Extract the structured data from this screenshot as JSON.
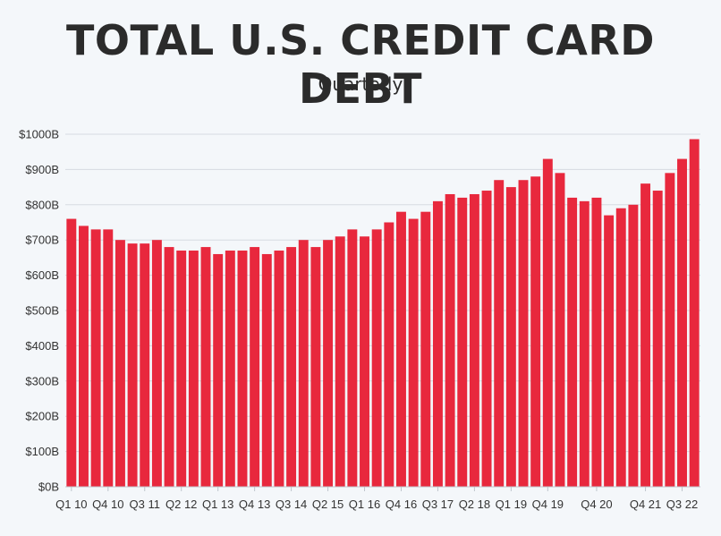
{
  "chart_data": {
    "type": "bar",
    "title": "TOTAL U.S. CREDIT CARD DEBT",
    "subtitle": "Quarterly",
    "xlabel": "",
    "ylabel": "",
    "ylim": [
      0,
      1000
    ],
    "y_ticks": [
      {
        "value": 0,
        "label": "$0B"
      },
      {
        "value": 100,
        "label": "$100B"
      },
      {
        "value": 200,
        "label": "$200B"
      },
      {
        "value": 300,
        "label": "$300B"
      },
      {
        "value": 400,
        "label": "$400B"
      },
      {
        "value": 500,
        "label": "$500B"
      },
      {
        "value": 600,
        "label": "$600B"
      },
      {
        "value": 700,
        "label": "$700B"
      },
      {
        "value": 800,
        "label": "$800B"
      },
      {
        "value": 900,
        "label": "$900B"
      },
      {
        "value": 1000,
        "label": "$1000B"
      }
    ],
    "grid": true,
    "bar_color": "#e8283d",
    "categories": [
      "Q1 10",
      "Q2 10",
      "Q3 10",
      "Q4 10",
      "Q1 11",
      "Q2 11",
      "Q3 11",
      "Q4 11",
      "Q1 12",
      "Q2 12",
      "Q3 12",
      "Q4 12",
      "Q1 13",
      "Q2 13",
      "Q3 13",
      "Q4 13",
      "Q1 14",
      "Q2 14",
      "Q3 14",
      "Q4 14",
      "Q1 15",
      "Q2 15",
      "Q3 15",
      "Q4 15",
      "Q1 16",
      "Q2 16",
      "Q3 16",
      "Q4 16",
      "Q1 17",
      "Q2 17",
      "Q3 17",
      "Q4 17",
      "Q1 18",
      "Q2 18",
      "Q3 18",
      "Q4 18",
      "Q1 19",
      "Q2 19",
      "Q3 19",
      "Q4 19",
      "Q1 20",
      "Q2 20",
      "Q3 20",
      "Q4 20",
      "Q1 21",
      "Q2 21",
      "Q3 21",
      "Q4 21",
      "Q1 22",
      "Q2 22",
      "Q3 22",
      "Q4 22"
    ],
    "values": [
      760,
      740,
      730,
      730,
      700,
      690,
      690,
      700,
      680,
      670,
      670,
      680,
      660,
      670,
      670,
      680,
      660,
      670,
      680,
      700,
      680,
      700,
      710,
      730,
      710,
      730,
      750,
      780,
      760,
      780,
      810,
      830,
      820,
      830,
      840,
      870,
      850,
      870,
      880,
      930,
      890,
      820,
      810,
      820,
      770,
      790,
      800,
      860,
      840,
      890,
      930,
      986
    ],
    "x_tick_labels": [
      {
        "index": 0,
        "label": "Q1 10"
      },
      {
        "index": 3,
        "label": "Q4 10"
      },
      {
        "index": 6,
        "label": "Q3 11"
      },
      {
        "index": 9,
        "label": "Q2 12"
      },
      {
        "index": 12,
        "label": "Q1 13"
      },
      {
        "index": 15,
        "label": "Q4 13"
      },
      {
        "index": 18,
        "label": "Q3 14"
      },
      {
        "index": 21,
        "label": "Q2 15"
      },
      {
        "index": 24,
        "label": "Q1 16"
      },
      {
        "index": 27,
        "label": "Q4 16"
      },
      {
        "index": 30,
        "label": "Q3 17"
      },
      {
        "index": 33,
        "label": "Q2 18"
      },
      {
        "index": 36,
        "label": "Q1 19"
      },
      {
        "index": 39,
        "label": "Q4 19"
      },
      {
        "index": 43,
        "label": "Q4 20"
      },
      {
        "index": 47,
        "label": "Q4 21"
      },
      {
        "index": 50,
        "label": "Q3 22"
      }
    ]
  }
}
